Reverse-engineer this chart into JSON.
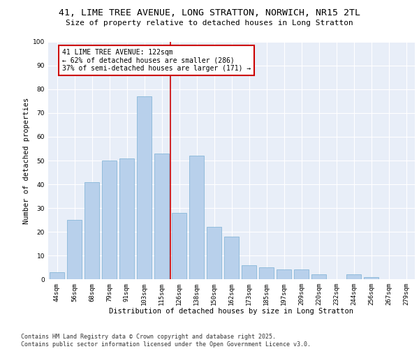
{
  "title_line1": "41, LIME TREE AVENUE, LONG STRATTON, NORWICH, NR15 2TL",
  "title_line2": "Size of property relative to detached houses in Long Stratton",
  "xlabel": "Distribution of detached houses by size in Long Stratton",
  "ylabel": "Number of detached properties",
  "categories": [
    "44sqm",
    "56sqm",
    "68sqm",
    "79sqm",
    "91sqm",
    "103sqm",
    "115sqm",
    "126sqm",
    "138sqm",
    "150sqm",
    "162sqm",
    "173sqm",
    "185sqm",
    "197sqm",
    "209sqm",
    "220sqm",
    "232sqm",
    "244sqm",
    "256sqm",
    "267sqm",
    "279sqm"
  ],
  "values": [
    3,
    25,
    41,
    50,
    51,
    77,
    53,
    28,
    52,
    22,
    18,
    6,
    5,
    4,
    4,
    2,
    0,
    2,
    1,
    0,
    0
  ],
  "bar_color": "#b8d0eb",
  "bar_edge_color": "#7aafd4",
  "vline_color": "#cc0000",
  "annotation_text": "41 LIME TREE AVENUE: 122sqm\n← 62% of detached houses are smaller (286)\n37% of semi-detached houses are larger (171) →",
  "annotation_box_color": "#ffffff",
  "annotation_box_edge": "#cc0000",
  "ylim": [
    0,
    100
  ],
  "yticks": [
    0,
    10,
    20,
    30,
    40,
    50,
    60,
    70,
    80,
    90,
    100
  ],
  "background_color": "#e8eef8",
  "grid_color": "#ffffff",
  "footer_line1": "Contains HM Land Registry data © Crown copyright and database right 2025.",
  "footer_line2": "Contains public sector information licensed under the Open Government Licence v3.0.",
  "title_fontsize": 9.5,
  "subtitle_fontsize": 8,
  "axis_label_fontsize": 7.5,
  "tick_fontsize": 6.5,
  "annotation_fontsize": 7,
  "footer_fontsize": 6
}
